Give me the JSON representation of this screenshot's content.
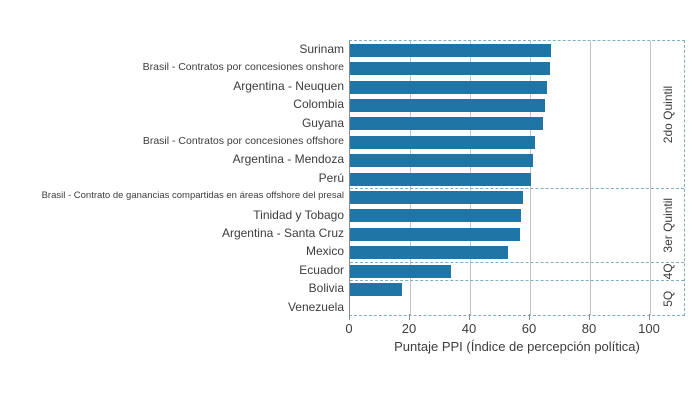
{
  "chart_data": {
    "type": "bar",
    "orientation": "horizontal",
    "title": "",
    "xlabel": "Puntaje PPI (Índice de percepción política)",
    "ylabel": "",
    "xlim": [
      0,
      112
    ],
    "xticks": [
      0,
      20,
      40,
      60,
      80,
      100
    ],
    "grid": "vertical solid gridlines at x ticks",
    "legend_position": "none",
    "categories": [
      "Surinam",
      "Brasil - Contratos por concesiones onshore",
      "Argentina - Neuquen",
      "Colombia",
      "Guyana",
      "Brasil - Contratos por concesiones offshore",
      "Argentina - Mendoza",
      "Perú",
      "Brasil - Contrato de ganancias compartidas en áreas offshore del presal",
      "Tinidad y Tobago",
      "Argentina - Santa Cruz",
      "Mexico",
      "Ecuador",
      "Bolivia",
      "Venezuela"
    ],
    "values": [
      67,
      66.5,
      65.5,
      65,
      64.3,
      61.8,
      61,
      60.2,
      57.8,
      57,
      56.6,
      52.5,
      33.5,
      17.3,
      0
    ],
    "groups": [
      {
        "label": "2do Quintil",
        "span": 8
      },
      {
        "label": "3er Quintil",
        "span": 4
      },
      {
        "label": "4Q",
        "span": 1
      },
      {
        "label": "5Q",
        "span": 2
      }
    ],
    "colors": {
      "bar": "#1f76a6",
      "separator_dashed": "#7fb0c0",
      "gridline": "#c3c3c3",
      "axis_line": "#8c8c8c",
      "text": "#3c3c3c"
    }
  }
}
